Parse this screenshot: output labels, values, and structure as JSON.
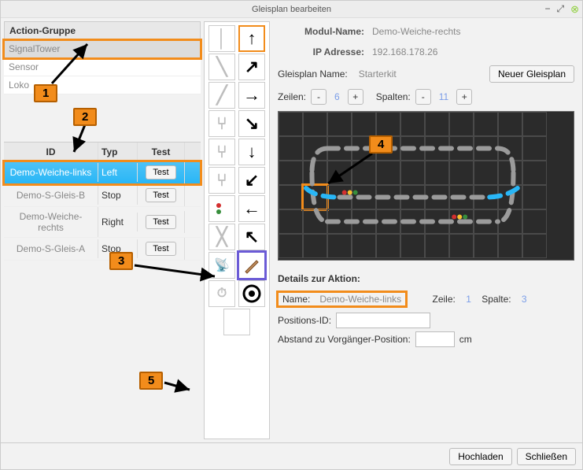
{
  "window": {
    "title": "Gleisplan bearbeiten"
  },
  "groups": {
    "header": "Action-Gruppe",
    "items": [
      "SignalTower",
      "Sensor",
      "Loko"
    ]
  },
  "callouts": {
    "c1": "1",
    "c2": "2",
    "c3": "3",
    "c4": "4",
    "c5": "5"
  },
  "table": {
    "headers": {
      "id": "ID",
      "typ": "Typ",
      "test": "Test"
    },
    "rows": [
      {
        "id": "Demo-Weiche-links",
        "typ": "Left",
        "test": "Test",
        "selected": true
      },
      {
        "id": "Demo-S-Gleis-B",
        "typ": "Stop",
        "test": "Test"
      },
      {
        "id": "Demo-Weiche-rechts",
        "typ": "Right",
        "test": "Test"
      },
      {
        "id": "Demo-S-Gleis-A",
        "typ": "Stop",
        "test": "Test"
      }
    ]
  },
  "right": {
    "modul_label": "Modul-Name:",
    "modul_value": "Demo-Weiche-rechts",
    "ip_label": "IP Adresse:",
    "ip_value": "192.168.178.26",
    "gp_label": "Gleisplan Name:",
    "gp_value": "Starterkit",
    "new_btn": "Neuer Gleisplan",
    "rows_label": "Zeilen:",
    "rows_value": "6",
    "cols_label": "Spalten:",
    "cols_value": "11",
    "minus": "-",
    "plus": "+"
  },
  "grid": {
    "rows": 6,
    "cols": 11,
    "cell": 31,
    "sel_cell": {
      "row": 3,
      "col": 1
    },
    "track_color": "#9b9b9b",
    "switch_color": "#29b6f6",
    "signal_colors": [
      "#d32f2f",
      "#fbc02d",
      "#388e3c"
    ]
  },
  "details": {
    "header": "Details zur Aktion:",
    "name_label": "Name:",
    "name_value": "Demo-Weiche-links",
    "zeile_label": "Zeile:",
    "zeile_value": "1",
    "spalte_label": "Spalte:",
    "spalte_value": "3",
    "posid_label": "Positions-ID:",
    "abstand_label": "Abstand zu Vorgänger-Position:",
    "cm": "cm"
  },
  "bottom": {
    "upload": "Hochladen",
    "close": "Schließen"
  }
}
